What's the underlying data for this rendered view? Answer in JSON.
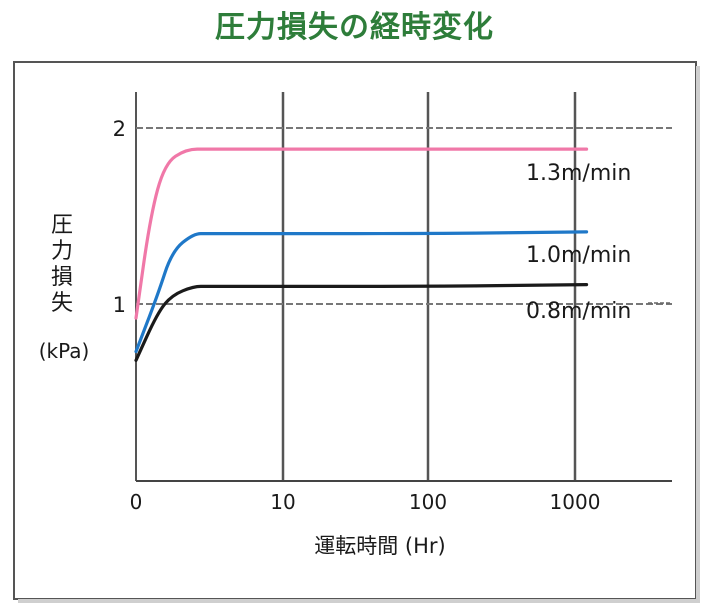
{
  "chart_data": {
    "type": "line",
    "title": "圧力損失の経時変化",
    "ylabel_chars": [
      "圧",
      "力",
      "損",
      "失"
    ],
    "ylabel_unit": "(kPa)",
    "xlabel": "運転時間 (Hr)",
    "x_scale": "log-like (0 then decades)",
    "x_ticks": [
      "0",
      "10",
      "100",
      "1000"
    ],
    "y_ticks": [
      "1",
      "2"
    ],
    "ylim": [
      0,
      2.2
    ],
    "grid": true,
    "series": [
      {
        "name": "1.3m/min",
        "color": "#f078a8",
        "points": [
          [
            0,
            0.92
          ],
          [
            0.2,
            1.5
          ],
          [
            0.4,
            1.8
          ],
          [
            0.7,
            1.88
          ],
          [
            1,
            1.88
          ],
          [
            10,
            1.88
          ],
          [
            100,
            1.88
          ],
          [
            1200,
            1.88
          ]
        ]
      },
      {
        "name": "1.0m/min",
        "color": "#1f78c8",
        "points": [
          [
            0,
            0.73
          ],
          [
            0.3,
            1.05
          ],
          [
            0.5,
            1.3
          ],
          [
            0.8,
            1.4
          ],
          [
            1,
            1.4
          ],
          [
            10,
            1.4
          ],
          [
            100,
            1.4
          ],
          [
            1200,
            1.41
          ]
        ]
      },
      {
        "name": "0.8m/min",
        "color": "#1a1a1a",
        "points": [
          [
            0,
            0.68
          ],
          [
            0.3,
            0.95
          ],
          [
            0.5,
            1.05
          ],
          [
            0.8,
            1.1
          ],
          [
            1,
            1.1
          ],
          [
            10,
            1.1
          ],
          [
            100,
            1.1
          ],
          [
            1200,
            1.11
          ]
        ]
      }
    ]
  }
}
